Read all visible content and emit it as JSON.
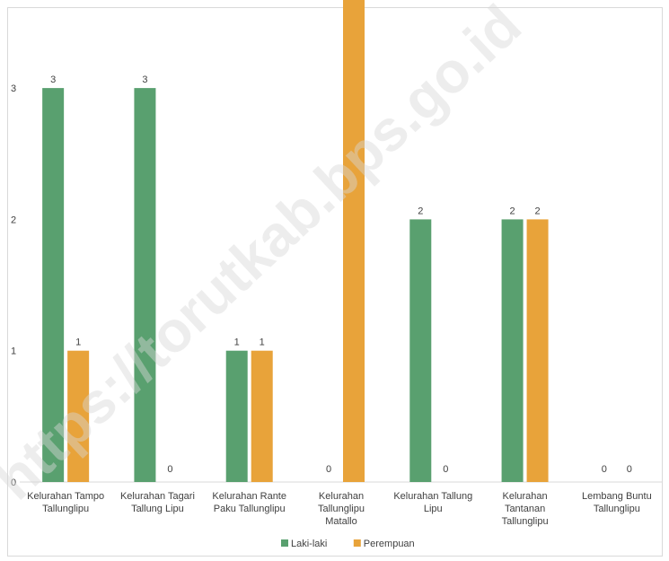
{
  "chart_data": {
    "type": "bar",
    "categories": [
      [
        "Kelurahan Tampo",
        "Tallunglipu"
      ],
      [
        "Kelurahan Tagari",
        "Tallung Lipu"
      ],
      [
        "Kelurahan Rante",
        "Paku Tallunglipu"
      ],
      [
        "Kelurahan",
        "Tallunglipu",
        "Matallo"
      ],
      [
        "Kelurahan Tallung",
        "Lipu"
      ],
      [
        "Kelurahan",
        "Tantanan",
        "Tallunglipu"
      ],
      [
        "Lembang Buntu",
        "Tallunglipu"
      ]
    ],
    "series": [
      {
        "name": "Laki-laki",
        "color": "#59a06f",
        "values": [
          3,
          3,
          1,
          0,
          2,
          2,
          0
        ]
      },
      {
        "name": "Perempuan",
        "color": "#e8a33a",
        "values": [
          1,
          0,
          1,
          4,
          0,
          2,
          0
        ]
      }
    ],
    "data_labels": [
      [
        "3",
        "3",
        "1",
        "0",
        "2",
        "2",
        "0"
      ],
      [
        "1",
        "0",
        "1",
        "",
        "0",
        "2",
        "0"
      ]
    ],
    "yticks": [
      "0",
      "1",
      "2",
      "3"
    ],
    "ylim": [
      0,
      3.5
    ],
    "grid": false,
    "legend_position": "bottom",
    "title": "",
    "xlabel": "",
    "ylabel": ""
  },
  "watermark": "https://torutkab.bps.go.id"
}
